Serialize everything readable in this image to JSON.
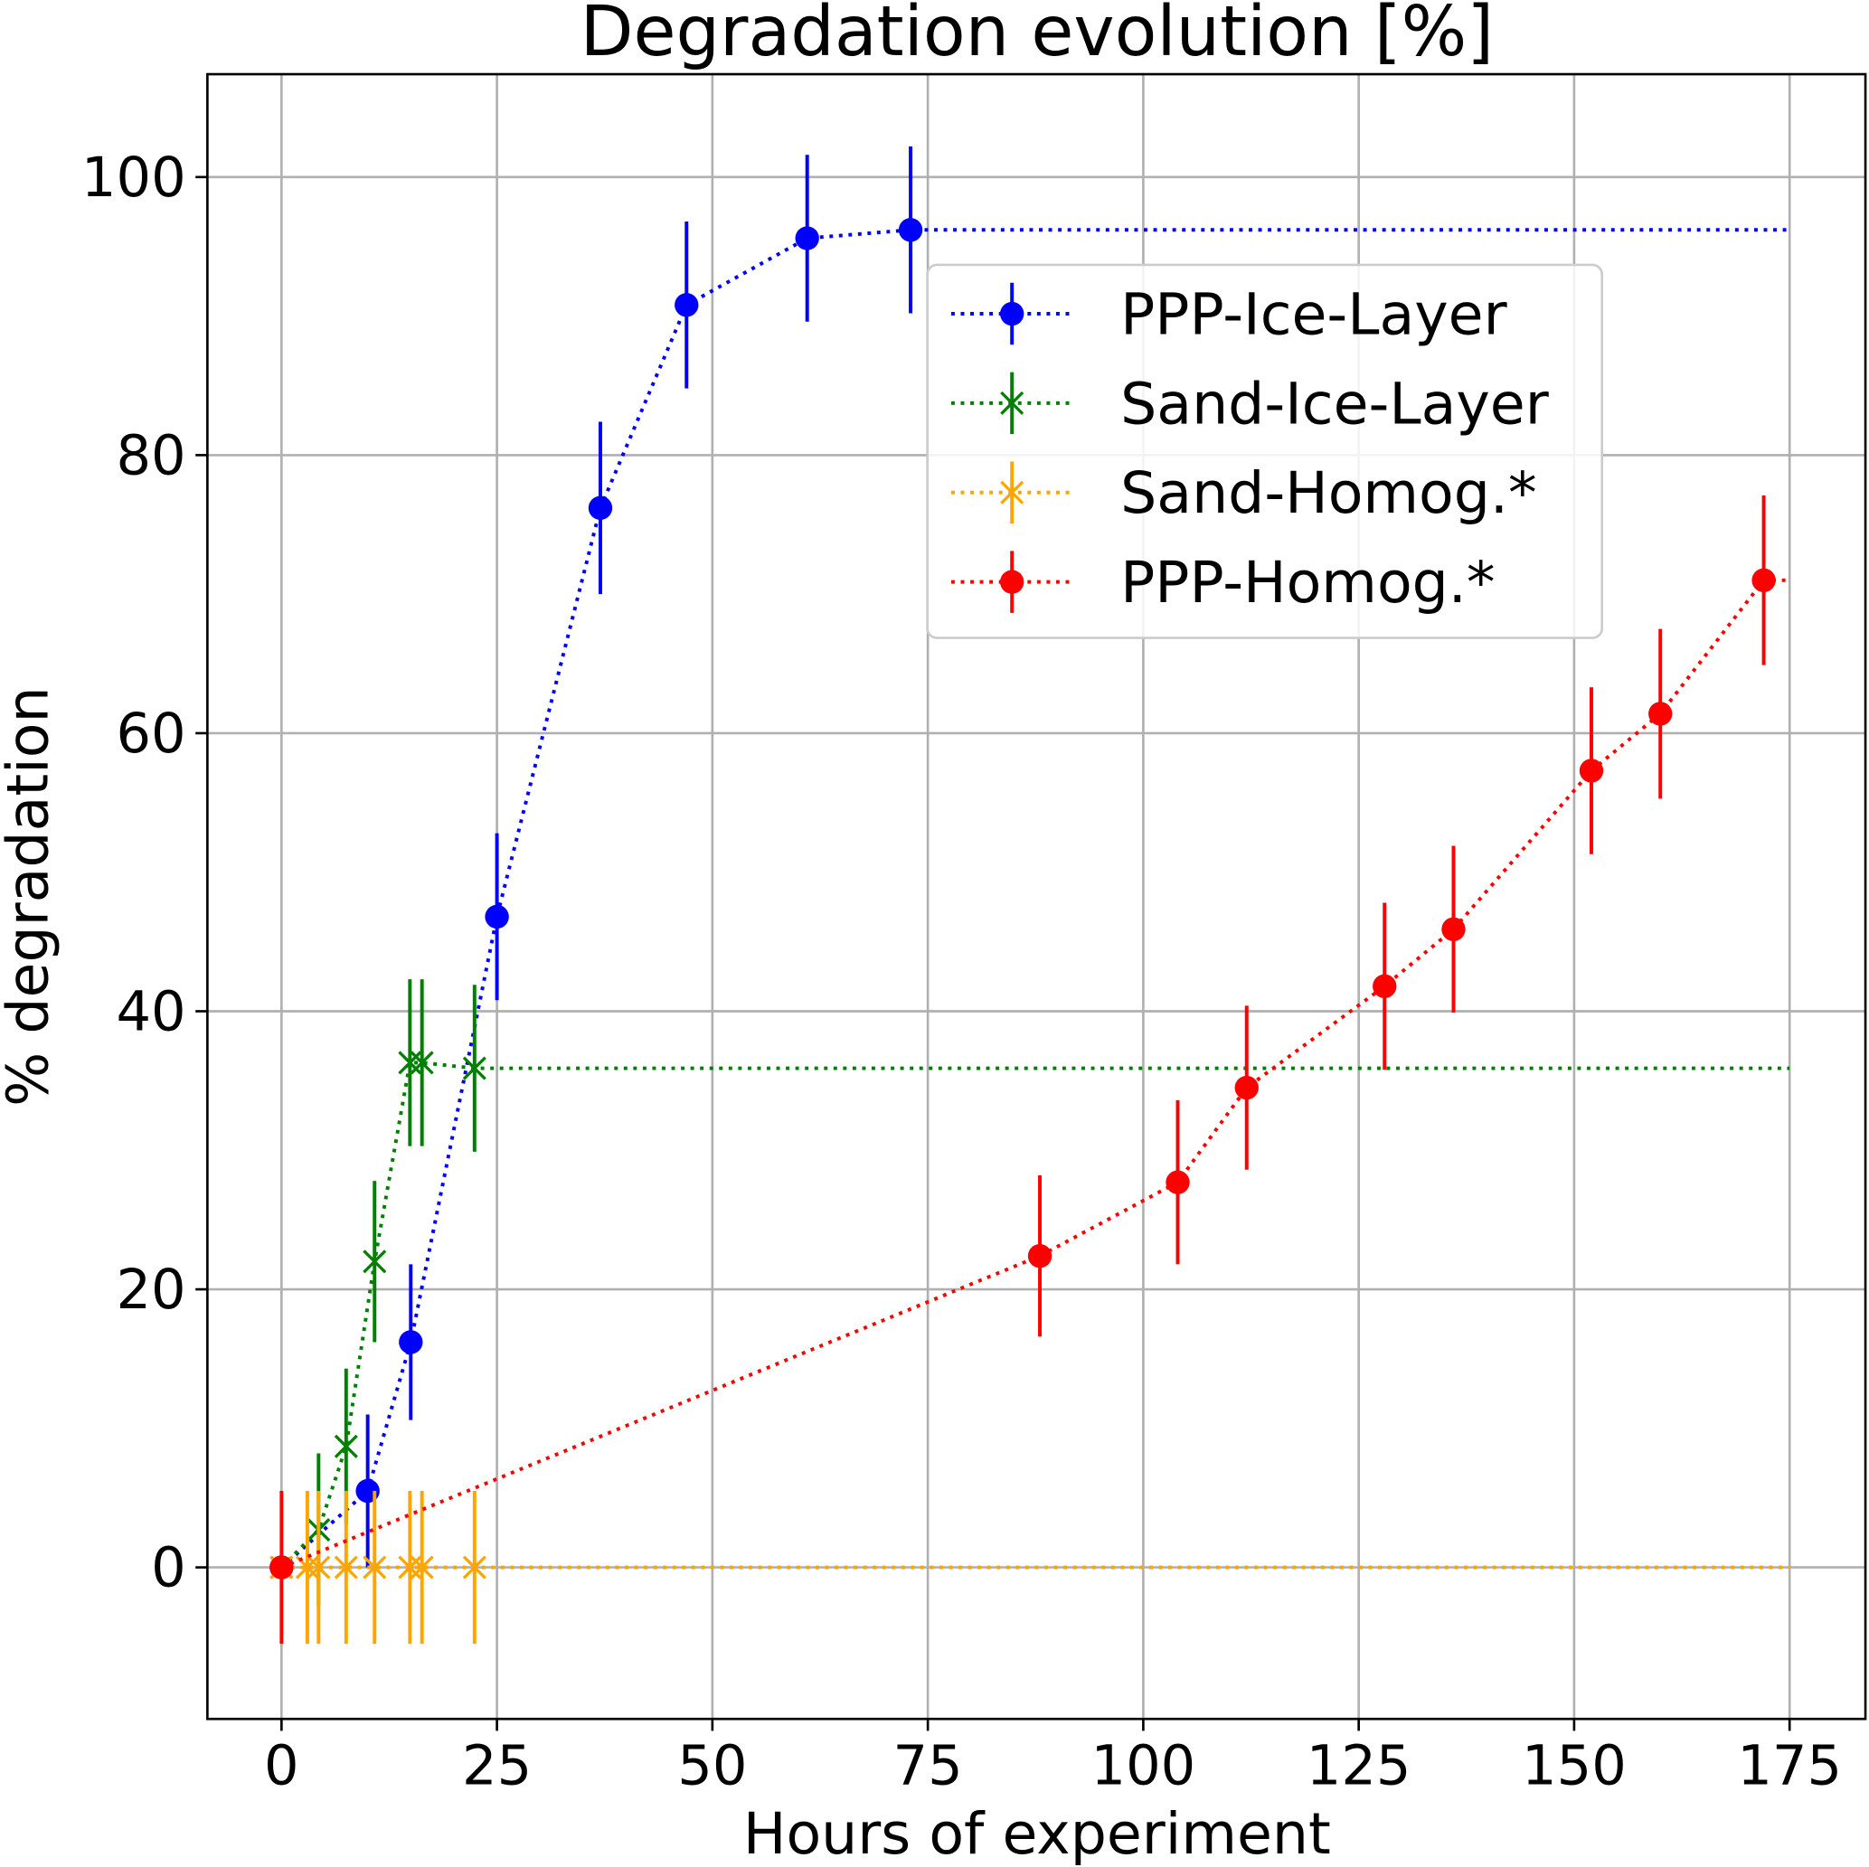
{
  "chart_data": {
    "type": "line",
    "title": "Degradation evolution [%]",
    "xlabel": "Hours of experiment",
    "ylabel": "% degradation",
    "xlim": [
      -8.6,
      183.8
    ],
    "ylim": [
      -10.9,
      107.4
    ],
    "xticks": [
      0,
      25,
      50,
      75,
      100,
      125,
      150,
      175
    ],
    "yticks": [
      0,
      20,
      40,
      60,
      80,
      100
    ],
    "grid": true,
    "legend_position": "upper-right",
    "series": [
      {
        "name": "PPP-Ice-Layer",
        "color": "#0000ff",
        "marker": "circle",
        "x": [
          0,
          10,
          15,
          25,
          37,
          47,
          61,
          73,
          175
        ],
        "y": [
          0,
          5.5,
          16.2,
          46.8,
          76.2,
          90.8,
          95.6,
          96.2,
          96.2
        ],
        "err": [
          0,
          5.5,
          5.6,
          6,
          6.2,
          6,
          6,
          6,
          null
        ]
      },
      {
        "name": "Sand-Ice-Layer",
        "color": "#008000",
        "marker": "x",
        "x": [
          0,
          4.3,
          7.5,
          10.8,
          14.9,
          16.3,
          22.4,
          175
        ],
        "y": [
          0,
          2.7,
          8.7,
          22.0,
          36.3,
          36.3,
          35.9,
          35.9
        ],
        "err": [
          0,
          5.5,
          5.6,
          5.8,
          6,
          6,
          6,
          null
        ]
      },
      {
        "name": "Sand-Homog.*",
        "color": "#ffa500",
        "marker": "x",
        "x": [
          0,
          3,
          4.3,
          7.5,
          10.8,
          14.9,
          16.3,
          22.4,
          175
        ],
        "y": [
          0,
          0,
          0,
          0,
          0,
          0,
          0,
          0,
          0
        ],
        "err": [
          0,
          5.5,
          5.5,
          5.5,
          5.5,
          5.5,
          5.5,
          5.5,
          null
        ]
      },
      {
        "name": "PPP-Homog.*",
        "color": "#ff0000",
        "marker": "circle",
        "x": [
          0,
          88,
          104,
          112,
          128,
          136,
          152,
          160,
          172,
          175
        ],
        "y": [
          0,
          22.4,
          27.7,
          34.5,
          41.8,
          45.9,
          57.3,
          61.4,
          71.0,
          71.0
        ],
        "err": [
          5.5,
          5.8,
          5.9,
          5.9,
          6,
          6,
          6,
          6.1,
          6.1,
          null
        ]
      }
    ]
  }
}
